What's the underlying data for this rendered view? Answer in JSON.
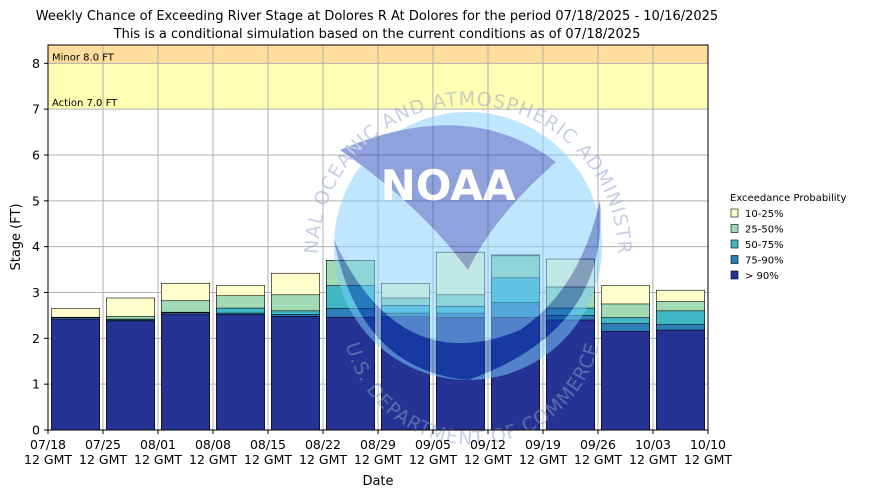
{
  "chart_data": {
    "type": "bar",
    "title": "Weekly Chance of Exceeding River Stage at Dolores R At Dolores for the period 07/18/2025 - 10/16/2025",
    "subtitle": "This is a conditional simulation based on the current conditions as of 07/18/2025",
    "xlabel": "Date",
    "ylabel": "Stage (FT)",
    "ylim": [
      0,
      8.4
    ],
    "yticks": [
      0,
      1,
      2,
      3,
      4,
      5,
      6,
      7,
      8
    ],
    "grid": true,
    "legend_position": "right",
    "legend_title": "Exceedance Probability",
    "watermark_logo": "NOAA",
    "watermark_text": "NATIONAL OCEANIC AND ATMOSPHERIC ADMINISTRATION",
    "watermark_text_bottom": "U.S. DEPARTMENT OF COMMERCE",
    "xticks": [
      {
        "line1": "07/18",
        "line2": "12 GMT"
      },
      {
        "line1": "07/25",
        "line2": "12 GMT"
      },
      {
        "line1": "08/01",
        "line2": "12 GMT"
      },
      {
        "line1": "08/08",
        "line2": "12 GMT"
      },
      {
        "line1": "08/15",
        "line2": "12 GMT"
      },
      {
        "line1": "08/22",
        "line2": "12 GMT"
      },
      {
        "line1": "08/29",
        "line2": "12 GMT"
      },
      {
        "line1": "09/05",
        "line2": "12 GMT"
      },
      {
        "line1": "09/12",
        "line2": "12 GMT"
      },
      {
        "line1": "09/19",
        "line2": "12 GMT"
      },
      {
        "line1": "09/26",
        "line2": "12 GMT"
      },
      {
        "line1": "10/03",
        "line2": "12 GMT"
      },
      {
        "line1": "10/10",
        "line2": "12 GMT"
      }
    ],
    "thresholds": [
      {
        "label": "Minor 8.0 FT",
        "from": 8.0,
        "to": 8.4,
        "color": "#ffdd9c"
      },
      {
        "label": "Action 7.0 FT",
        "from": 7.0,
        "to": 8.0,
        "color": "#ffffb3"
      }
    ],
    "series": [
      {
        "name": "> 90%",
        "color": "#253494",
        "values": [
          2.42,
          2.38,
          2.53,
          2.52,
          2.48,
          2.46,
          2.47,
          2.46,
          2.46,
          2.4,
          2.15,
          2.18
        ]
      },
      {
        "name": "75-90%",
        "color": "#2c7fb8",
        "values": [
          2.45,
          2.4,
          2.56,
          2.55,
          2.52,
          2.65,
          2.55,
          2.55,
          2.78,
          2.5,
          2.32,
          2.3
        ]
      },
      {
        "name": "50-75%",
        "color": "#41b6c4",
        "values": [
          2.45,
          2.42,
          2.57,
          2.66,
          2.6,
          3.15,
          2.72,
          2.7,
          3.32,
          2.66,
          2.45,
          2.6
        ]
      },
      {
        "name": "25-50%",
        "color": "#a1dab4",
        "values": [
          2.46,
          2.48,
          2.82,
          2.93,
          2.95,
          3.7,
          2.88,
          2.95,
          3.8,
          3.12,
          2.75,
          2.8
        ]
      },
      {
        "name": "10-25%",
        "color": "#ffffcc",
        "values": [
          2.65,
          2.88,
          3.2,
          3.15,
          3.42,
          3.7,
          3.2,
          3.88,
          3.82,
          3.73,
          3.15,
          3.05
        ]
      }
    ]
  }
}
